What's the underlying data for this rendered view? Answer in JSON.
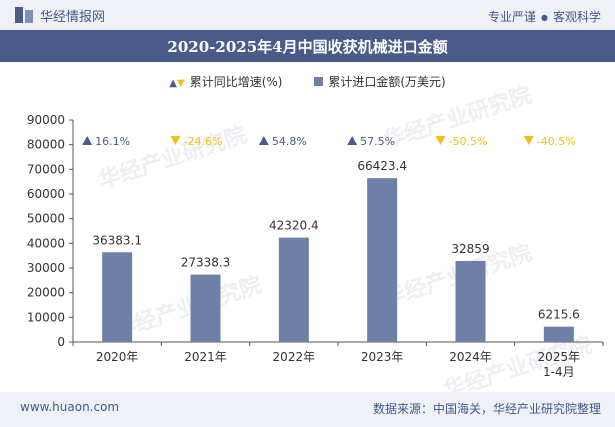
{
  "header": {
    "site_name": "华经情报网",
    "tagline_left": "专业严谨",
    "tagline_right": "客观科学"
  },
  "title": "2020-2025年4月中国收获机械进口金额",
  "legend": {
    "growth_label": "累计同比增速(%)",
    "amount_label": "累计进口金额(万美元)"
  },
  "footer": {
    "url": "www.huaon.com",
    "source": "数据来源：中国海关，华经产业研究院整理"
  },
  "watermark_text": "华经产业研究院",
  "colors": {
    "bar": "#6e7fa8",
    "up_arrow": "#4a5b8a",
    "down_arrow": "#f2c118",
    "title_bg": "#4a5b8a"
  },
  "chart_data": {
    "type": "bar",
    "categories": [
      "2020年",
      "2021年",
      "2022年",
      "2023年",
      "2024年",
      "2025年\n1-4月"
    ],
    "series": [
      {
        "name": "累计进口金额(万美元)",
        "values": [
          36383.1,
          27338.3,
          42320.4,
          66423.4,
          32859,
          6215.6
        ],
        "labels": [
          "36383.1",
          "27338.3",
          "42320.4",
          "66423.4",
          "32859",
          "6215.6"
        ]
      },
      {
        "name": "累计同比增速(%)",
        "values": [
          16.1,
          -24.6,
          54.8,
          57.5,
          -50.5,
          -40.5
        ],
        "labels": [
          "16.1%",
          "-24.6%",
          "54.8%",
          "57.5%",
          "-50.5%",
          "-40.5%"
        ]
      }
    ],
    "ylim": [
      0,
      90000
    ],
    "yticks": [
      "0",
      "10000",
      "20000",
      "30000",
      "40000",
      "50000",
      "60000",
      "70000",
      "80000",
      "90000"
    ],
    "grid": false,
    "legend_position": "top-center"
  }
}
